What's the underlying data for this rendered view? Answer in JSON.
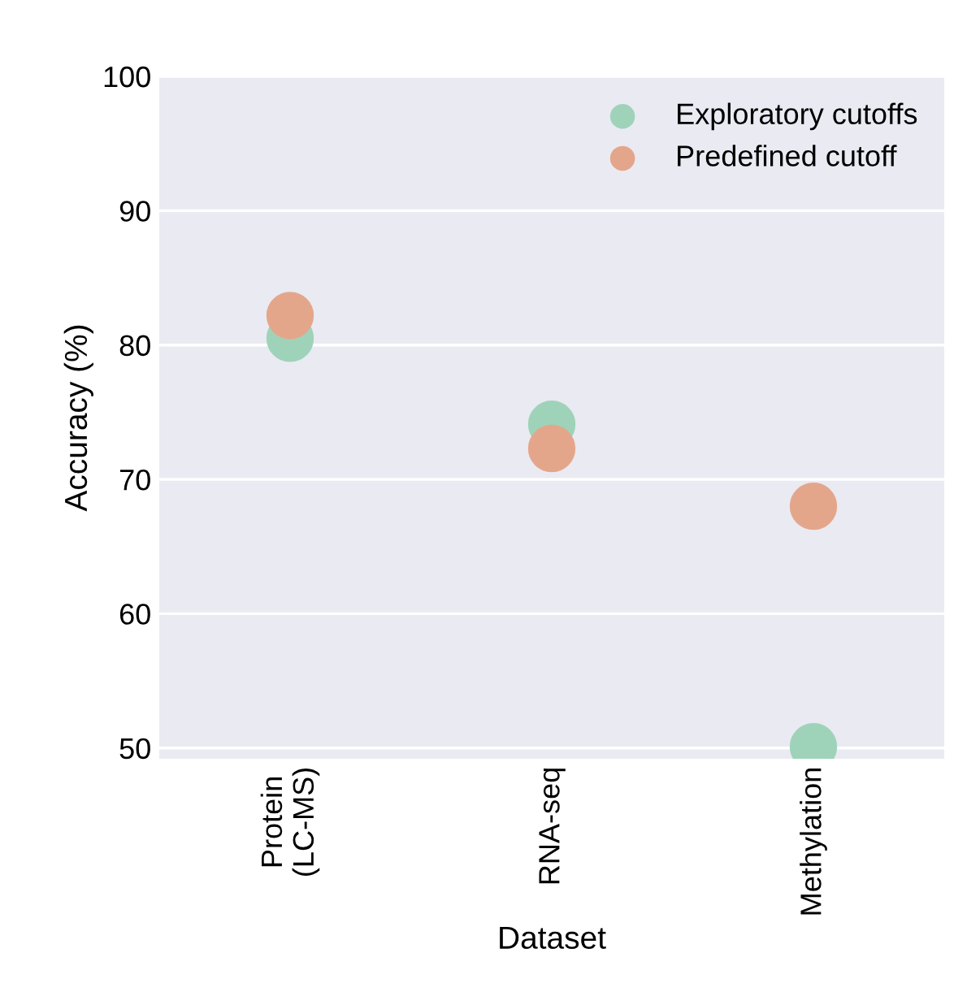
{
  "chart_data": {
    "type": "scatter",
    "xlabel": "Dataset",
    "ylabel": "Accuracy (%)",
    "categories": [
      "Protein\n(LC-MS)",
      "RNA-seq",
      "Methylation"
    ],
    "series": [
      {
        "name": "Exploratory cutoffs",
        "color": "#9fd3b9",
        "values": [
          80.5,
          74.1,
          50.1
        ]
      },
      {
        "name": "Predefined cutoff",
        "color": "#e4a68b",
        "values": [
          82.2,
          72.3,
          68.0
        ]
      }
    ],
    "ylim": [
      49.2,
      100
    ],
    "yticks": [
      50,
      60,
      70,
      80,
      90,
      100
    ],
    "grid": "y",
    "legend": "top right",
    "marker": "circle"
  }
}
